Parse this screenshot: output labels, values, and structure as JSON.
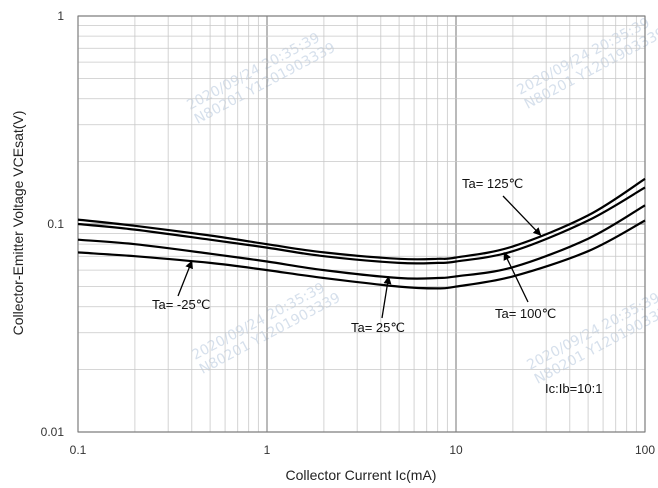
{
  "chart_data": {
    "type": "line",
    "xscale": "log",
    "yscale": "log",
    "xlim": [
      0.1,
      100
    ],
    "ylim": [
      0.01,
      1
    ],
    "grid": true,
    "xlabel": "Collector Current  Ic(mA)",
    "ylabel": "Collector-Emitter Voltage  VCEsat(V)",
    "x_ticks": [
      "0.1",
      "1",
      "10",
      "100"
    ],
    "y_ticks": [
      "0.01",
      "0.1",
      "1"
    ],
    "condition_note": "Ic:Ib=10:1",
    "series": [
      {
        "name": "Ta= 125℃",
        "x": [
          0.1,
          0.2,
          0.5,
          1,
          2,
          5,
          8,
          10,
          20,
          50,
          100
        ],
        "y": [
          0.105,
          0.098,
          0.088,
          0.08,
          0.073,
          0.068,
          0.068,
          0.069,
          0.078,
          0.11,
          0.165
        ]
      },
      {
        "name": "Ta= 100℃",
        "x": [
          0.1,
          0.2,
          0.5,
          1,
          2,
          5,
          8,
          10,
          20,
          50,
          100
        ],
        "y": [
          0.1,
          0.094,
          0.084,
          0.077,
          0.07,
          0.065,
          0.065,
          0.066,
          0.074,
          0.104,
          0.15
        ]
      },
      {
        "name": "Ta= 25℃",
        "x": [
          0.1,
          0.2,
          0.5,
          1,
          2,
          5,
          8,
          10,
          20,
          50,
          100
        ],
        "y": [
          0.084,
          0.08,
          0.072,
          0.066,
          0.06,
          0.055,
          0.055,
          0.056,
          0.062,
          0.085,
          0.123
        ]
      },
      {
        "name": "Ta= -25℃",
        "x": [
          0.1,
          0.2,
          0.5,
          1,
          2,
          5,
          8,
          10,
          20,
          50,
          100
        ],
        "y": [
          0.073,
          0.07,
          0.065,
          0.06,
          0.055,
          0.05,
          0.049,
          0.05,
          0.056,
          0.074,
          0.104
        ]
      }
    ],
    "annotations": [
      {
        "text": "Ta= 125℃",
        "series": 0
      },
      {
        "text": "Ta= 100℃",
        "series": 1
      },
      {
        "text": "Ta= 25℃",
        "series": 2
      },
      {
        "text": "Ta= -25℃",
        "series": 3
      }
    ],
    "watermarks": [
      "2020/09/24 20:35:39",
      "N80201 Y1201903339"
    ],
    "colors": {
      "grid": "#c8c8c8",
      "grid_major": "#9a9a9a",
      "curve": "#000000",
      "watermark": "#c9d6e6"
    }
  }
}
